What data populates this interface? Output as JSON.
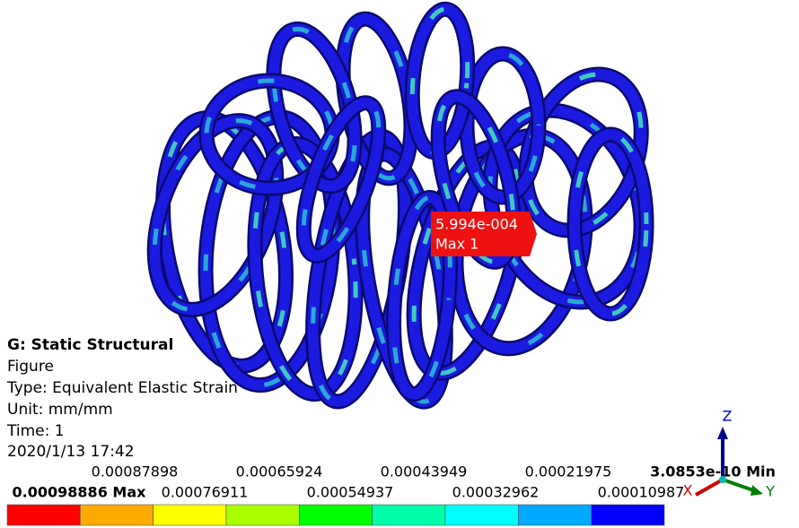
{
  "result": {
    "title": "G: Static Structural",
    "lines": [
      "Figure",
      "Type: Equivalent Elastic Strain",
      "Unit: mm/mm",
      "Time: 1",
      "2020/1/13 17:42"
    ]
  },
  "legend": {
    "upper_labels": [
      "0.00087898",
      "0.00065924",
      "0.00043949",
      "0.00021975",
      "3.0853e-10 Min"
    ],
    "lower_labels": [
      "0.00098886 Max",
      "0.00076911",
      "0.00054937",
      "0.00032962",
      "0.00010987"
    ],
    "colors": [
      "#ff0000",
      "#ffaa00",
      "#ffff00",
      "#aaff00",
      "#00ff00",
      "#00ffaa",
      "#00ffff",
      "#00aaff",
      "#0000ff"
    ]
  },
  "probe": {
    "value": "5.994e-004",
    "label": "Max 1"
  },
  "triad": {
    "z": "Z",
    "y": "Y",
    "x": "X"
  }
}
